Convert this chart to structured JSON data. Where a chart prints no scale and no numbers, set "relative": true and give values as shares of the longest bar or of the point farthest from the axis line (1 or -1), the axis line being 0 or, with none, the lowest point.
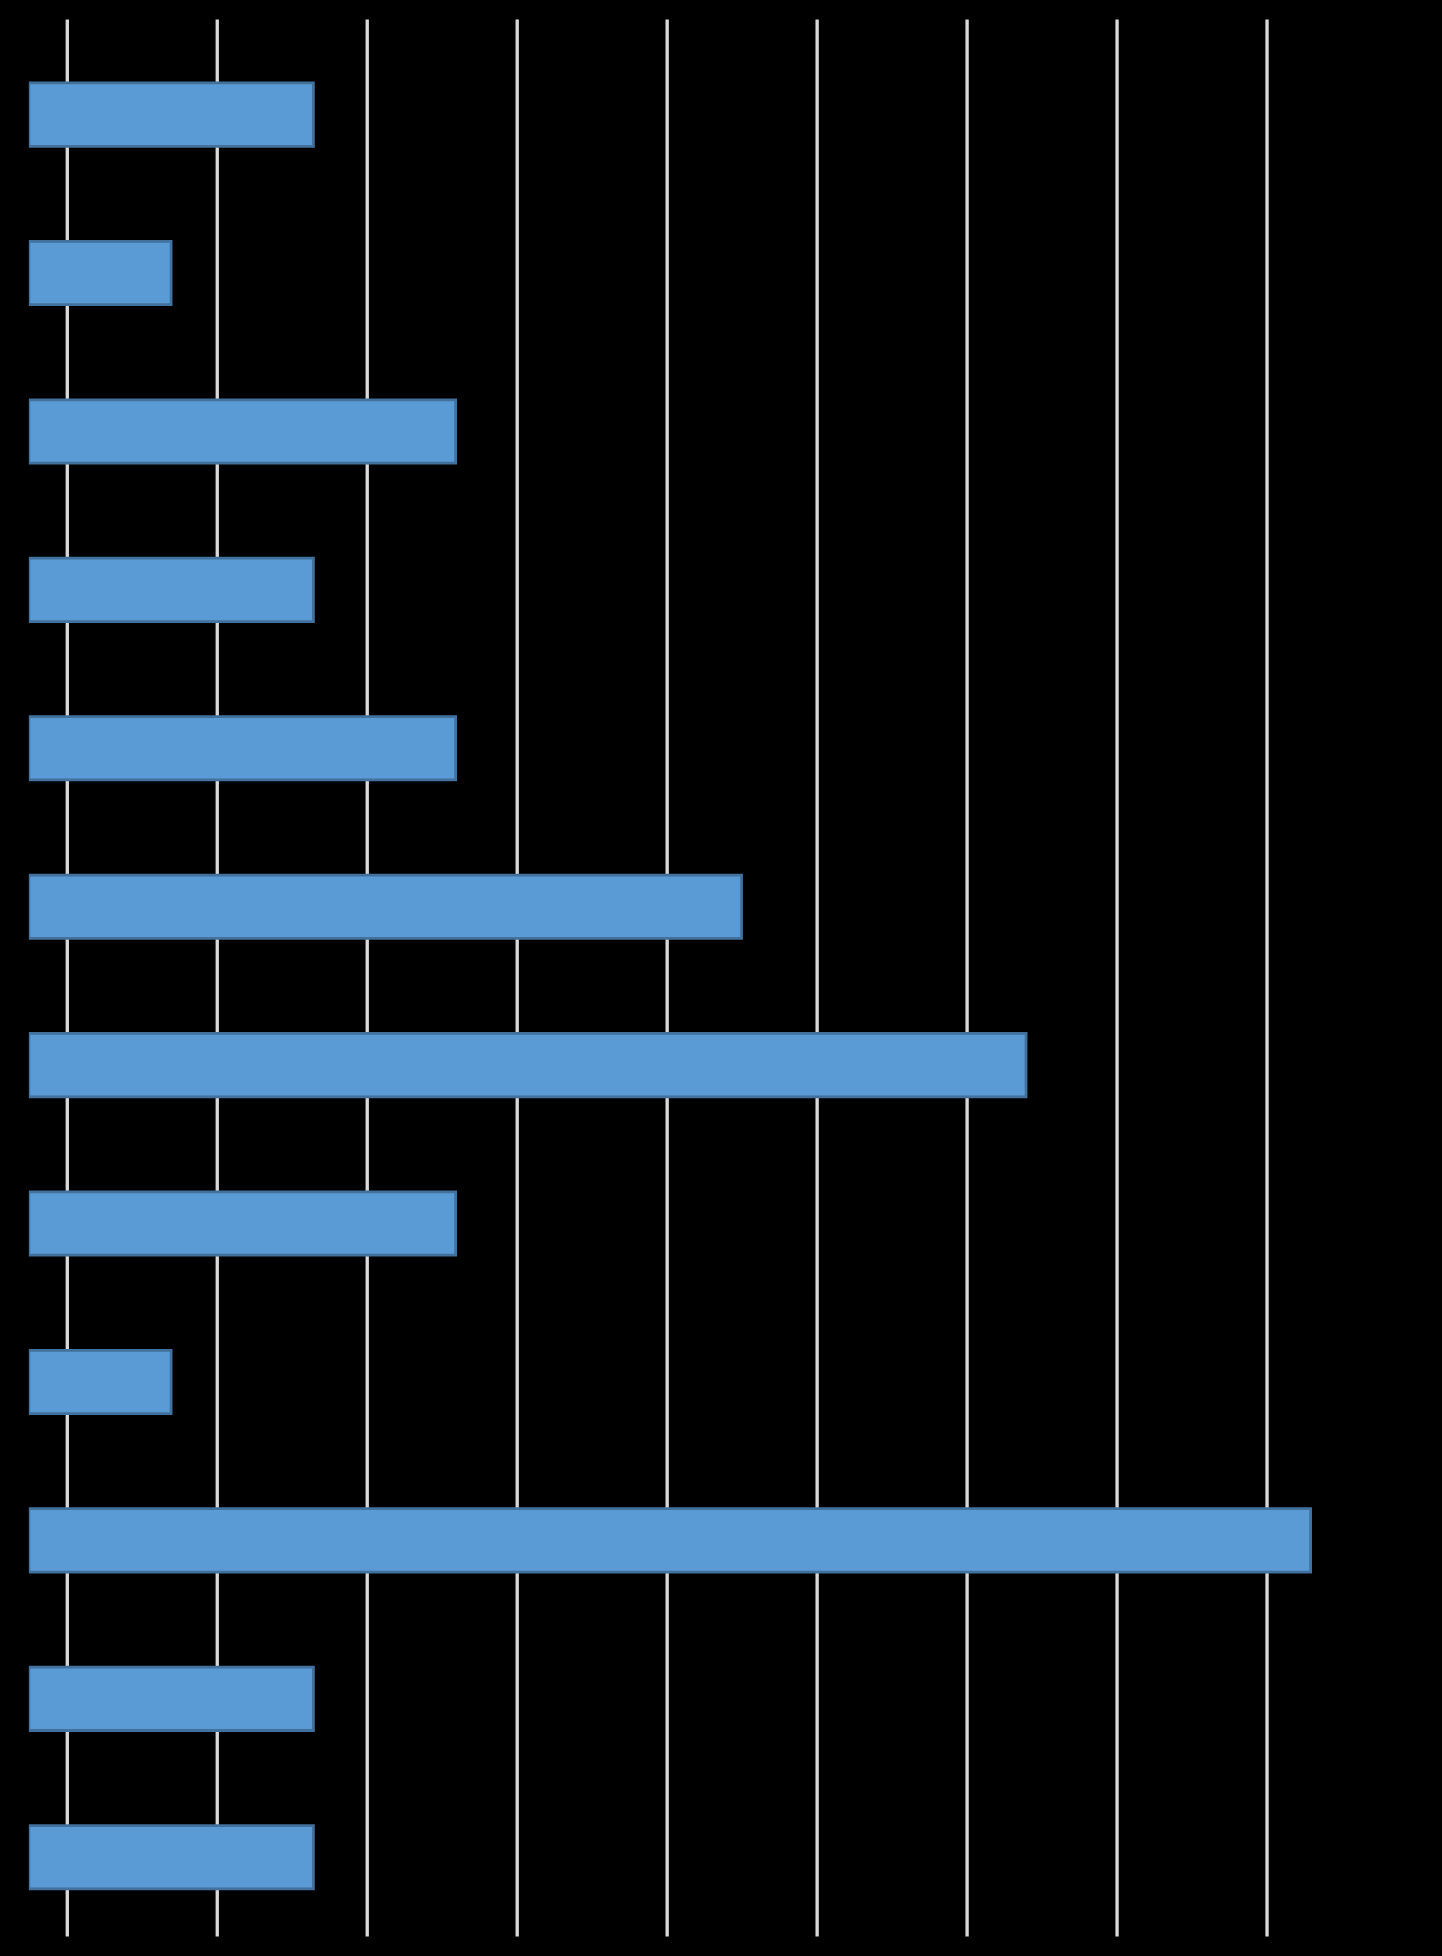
{
  "chart_data": {
    "type": "bar",
    "orientation": "horizontal",
    "relative": true,
    "categories": [
      null,
      null,
      null,
      null,
      null,
      null,
      null,
      null,
      null,
      null,
      null,
      null
    ],
    "values": [
      0.222,
      0.111,
      0.333,
      0.222,
      0.333,
      0.556,
      0.778,
      0.333,
      0.111,
      1,
      0.222,
      0.222
    ],
    "color": "#5b9bd5",
    "grid": "x"
  }
}
